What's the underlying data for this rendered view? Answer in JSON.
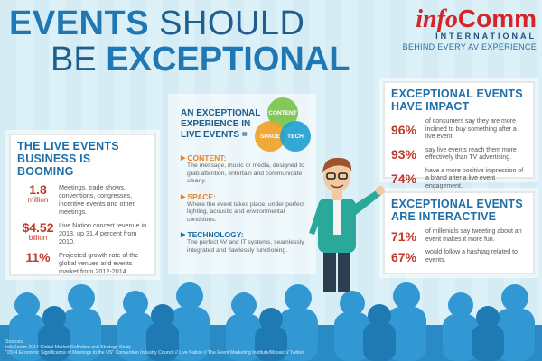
{
  "title": {
    "line1_a": "EVENTS",
    "line1_b": "SHOULD",
    "line2_a": "BE",
    "line2_b": "EXCEPTIONAL"
  },
  "logo": {
    "brand_info": "info",
    "brand_comm": "Comm",
    "international": "INTERNATIONAL",
    "tagline": "BEHIND EVERY AV EXPERIENCE"
  },
  "left_card": {
    "heading": "THE LIVE EVENTS BUSINESS IS BOOMING",
    "rows": [
      {
        "num": "1.8",
        "unit": "million",
        "desc": "Meetings, trade shows, conventions, congresses, incentive events and other meetings."
      },
      {
        "num": "$4.52",
        "unit": "billion",
        "desc": "Live Nation concert revenue in 2013, up 31.4 percent from 2010."
      },
      {
        "num": "11%",
        "unit": "",
        "desc": "Projected growth rate of the global venues and events market from 2012-2014."
      }
    ]
  },
  "center": {
    "heading": "AN EXCEPTIONAL EXPERIENCE IN LIVE EVENTS =",
    "venn": {
      "content": "CONTENT",
      "space": "SPACE",
      "tech": "TECH"
    },
    "items": [
      {
        "title": "CONTENT:",
        "desc": "The message, music or media, designed to grab attention, entertain and communicate clearly."
      },
      {
        "title": "SPACE:",
        "desc": "Where the event takes place, under perfect lighting, acoustic and environmental conditions."
      },
      {
        "title": "TECHNOLOGY:",
        "desc": "The perfect AV and IT systems, seamlessly integrated and flawlessly functioning."
      }
    ]
  },
  "right_card1": {
    "heading": "EXCEPTIONAL EVENTS HAVE IMPACT",
    "rows": [
      {
        "pct": "96%",
        "txt": "of consumers say they are more inclined to buy something after a live event."
      },
      {
        "pct": "93%",
        "txt": "say live events reach them more effectively than TV advertising."
      },
      {
        "pct": "74%",
        "txt": "have a more positive impression of a brand after a live event engagement."
      }
    ]
  },
  "right_card2": {
    "heading": "EXCEPTIONAL EVENTS ARE INTERACTIVE",
    "rows": [
      {
        "pct": "71%",
        "txt": "of millenials say tweeting about an event makes it more fun."
      },
      {
        "pct": "67%",
        "txt": "would follow a hashtag related to events."
      }
    ]
  },
  "sources": {
    "label": "Sources:",
    "line1": "InfoComm 2014 Global Market Definition and Strategy Study",
    "line2": "\"2014 Economic Significance of Meetings to the US\" Convention Industry Council // Live Nation // The Event Marketing Institute/Mosaic // Twitter"
  },
  "colors": {
    "title_blue": "#1f77b4",
    "accent_red": "#c0392b",
    "content_green": "#78c248",
    "space_orange": "#f2a026",
    "tech_blue": "#1ea0d2",
    "audience_blue": "#2a8bc4"
  }
}
